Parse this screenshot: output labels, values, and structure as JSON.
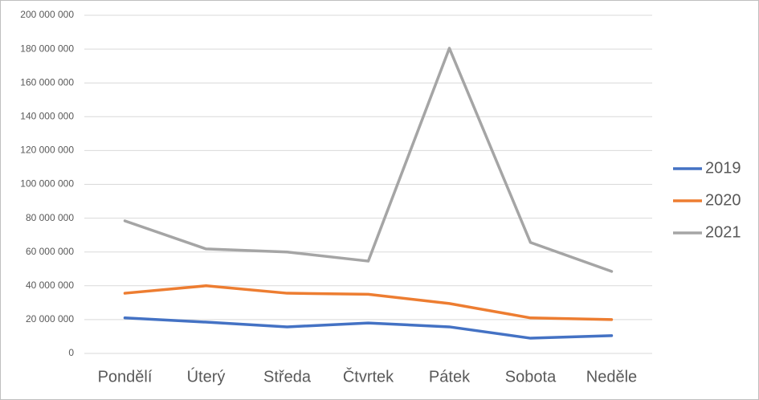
{
  "chart_data": {
    "type": "line",
    "categories": [
      "Pondělí",
      "Úterý",
      "Středa",
      "Čtvrtek",
      "Pátek",
      "Sobota",
      "Neděle"
    ],
    "series": [
      {
        "name": "2019",
        "color": "#4472c4",
        "values": [
          21000000,
          18500000,
          15700000,
          18000000,
          15700000,
          9000000,
          10500000
        ]
      },
      {
        "name": "2020",
        "color": "#ed7d31",
        "values": [
          35600000,
          40000000,
          35600000,
          35000000,
          29500000,
          21000000,
          20000000
        ]
      },
      {
        "name": "2021",
        "color": "#a5a5a5",
        "values": [
          78400000,
          61800000,
          60000000,
          54600000,
          180500000,
          65600000,
          48500000
        ]
      }
    ],
    "ylim": [
      0,
      200000000
    ],
    "yticks": [
      0,
      {
        "value": 20000000,
        "label": "20 000 000"
      },
      {
        "value": 40000000,
        "label": "40 000 000"
      },
      {
        "value": 60000000,
        "label": "60 000 000"
      },
      {
        "value": 80000000,
        "label": "80 000 000"
      },
      {
        "value": 100000000,
        "label": "100 000 000"
      },
      {
        "value": 120000000,
        "label": "120 000 000"
      },
      {
        "value": 140000000,
        "label": "140 000 000"
      },
      {
        "value": 160000000,
        "label": "160 000 000"
      },
      {
        "value": 180000000,
        "label": "180 000 000"
      },
      {
        "value": 200000000,
        "label": "200 000 000"
      }
    ],
    "grid": true,
    "legend": "right"
  }
}
